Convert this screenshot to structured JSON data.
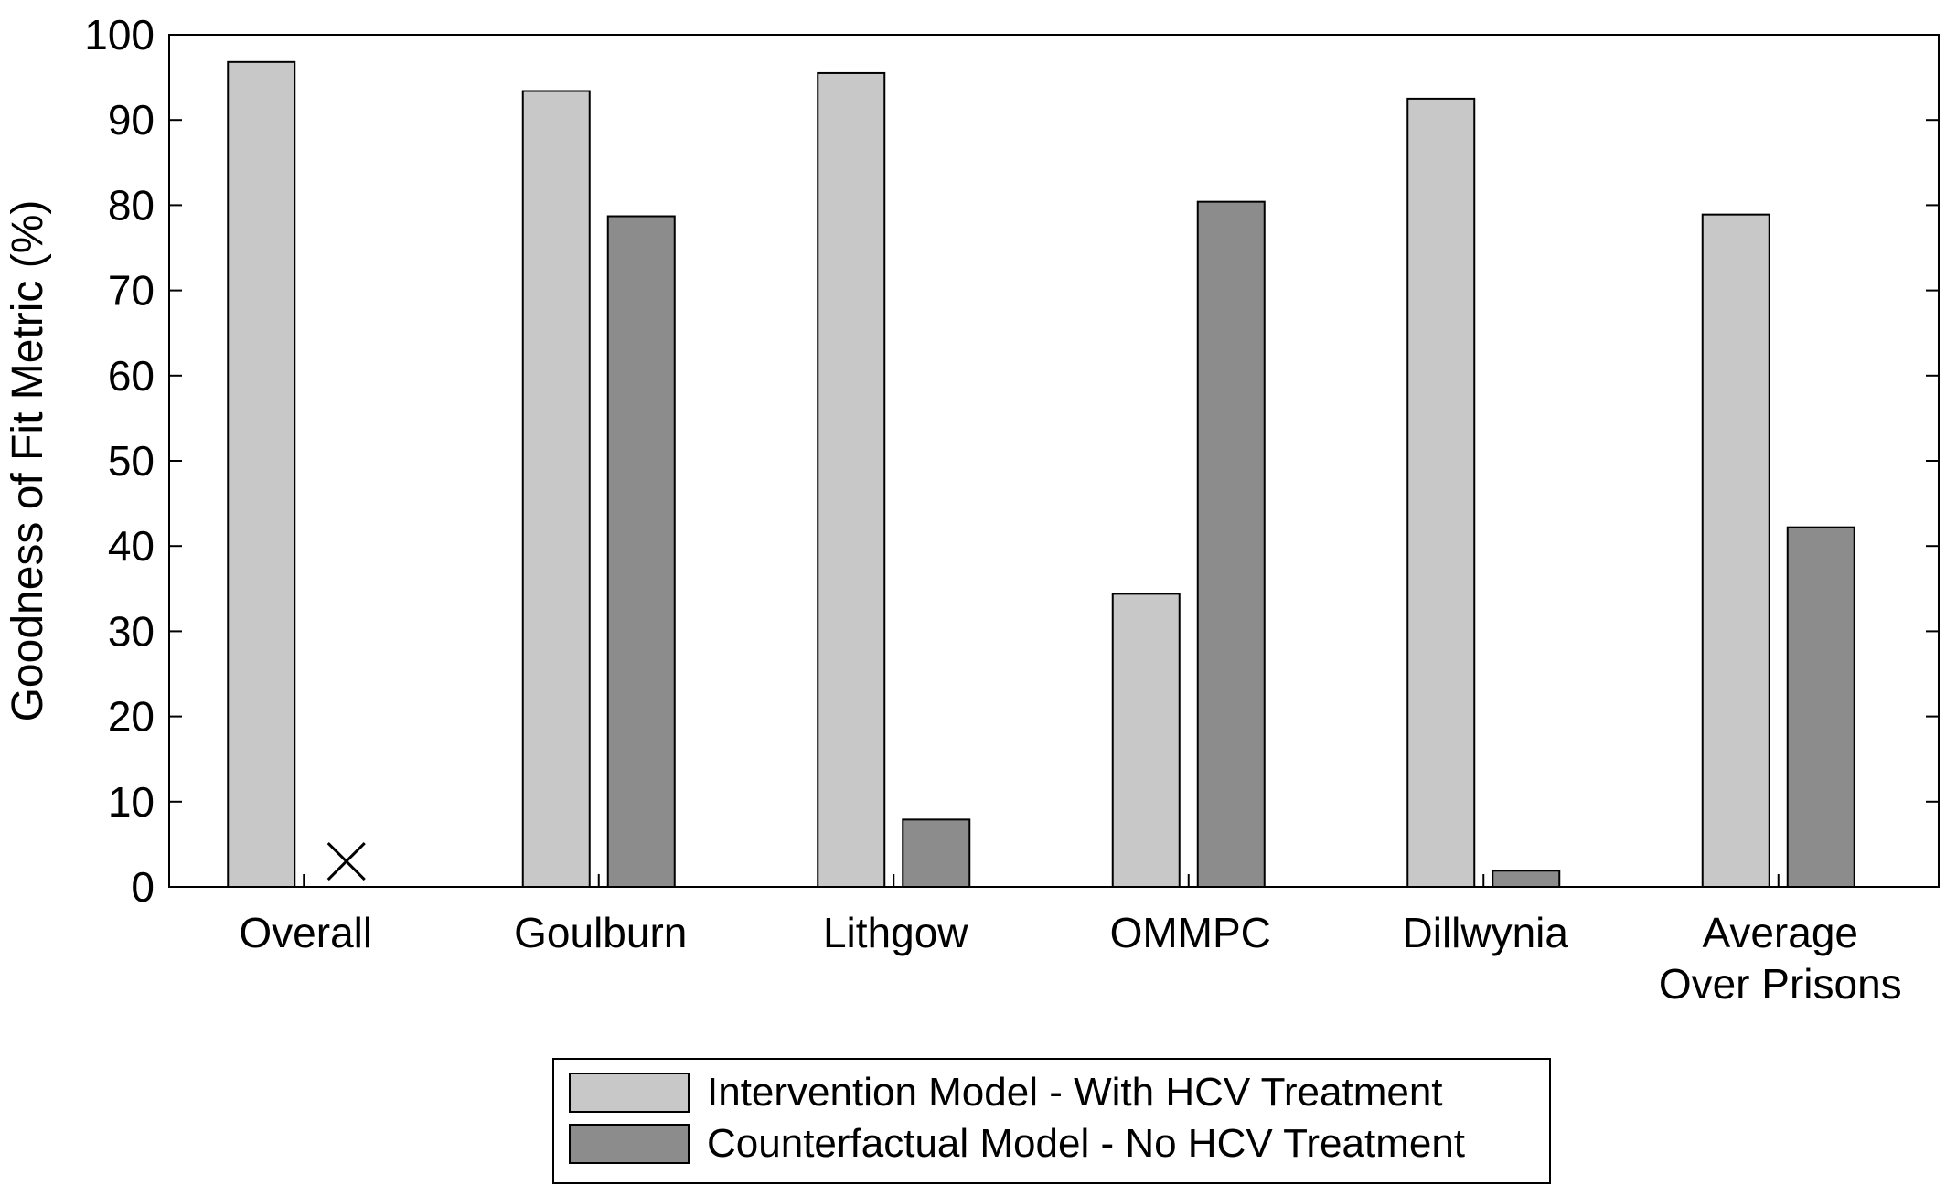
{
  "chart_data": {
    "type": "bar",
    "title": "",
    "xlabel": "",
    "ylabel": "Goodness of Fit Metric (%)",
    "ylim": [
      0,
      100
    ],
    "yticks": [
      0,
      10,
      20,
      30,
      40,
      50,
      60,
      70,
      80,
      90,
      100
    ],
    "grid": false,
    "legend_position": "bottom-center",
    "categories": [
      [
        "Overall"
      ],
      [
        "Goulburn"
      ],
      [
        "Lithgow"
      ],
      [
        "OMMPC"
      ],
      [
        "Dillwynia"
      ],
      [
        "Average",
        "Over Prisons"
      ]
    ],
    "series": [
      {
        "name": "Intervention Model - With HCV Treatment",
        "color": "#c8c8c8",
        "values": [
          96.8,
          93.4,
          95.5,
          34.4,
          92.5,
          78.9
        ]
      },
      {
        "name": "Counterfactual Model - No HCV Treatment",
        "color": "#8c8c8c",
        "values": [
          null,
          78.7,
          7.9,
          80.4,
          1.9,
          42.2
        ]
      }
    ],
    "annotations": [
      {
        "category_index": 0,
        "series_index": 1,
        "marker": "cross",
        "value": 3
      }
    ]
  }
}
